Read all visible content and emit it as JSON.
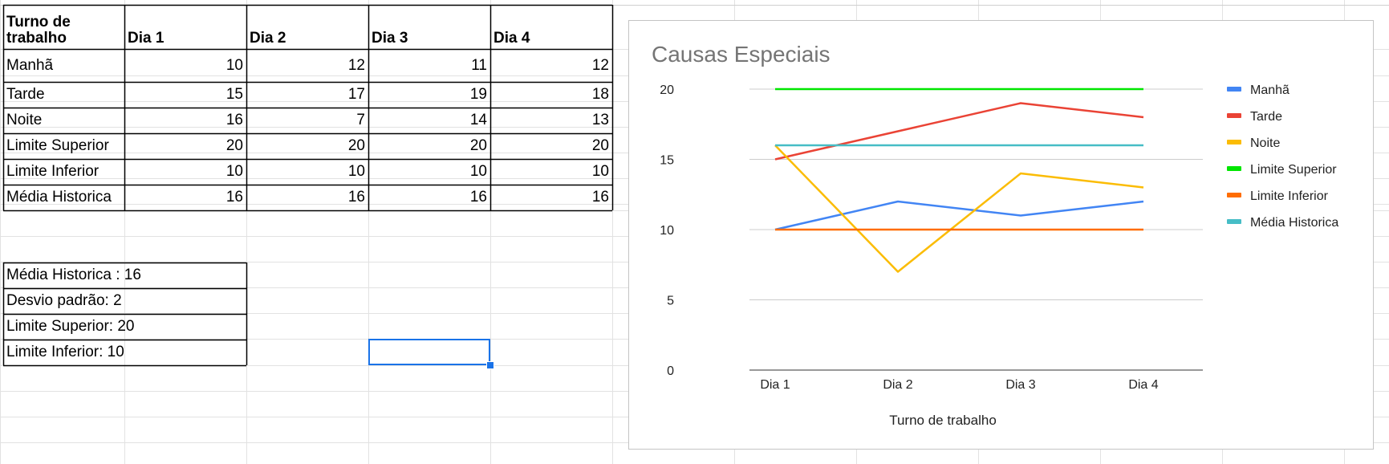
{
  "sheet": {
    "header": [
      "Turno de trabalho",
      "Dia 1",
      "Dia 2",
      "Dia 3",
      "Dia 4"
    ],
    "rows": [
      {
        "label": "Manhã",
        "values": [
          "10",
          "12",
          "11",
          "12"
        ]
      },
      {
        "label": "Tarde",
        "values": [
          "15",
          "17",
          "19",
          "18"
        ]
      },
      {
        "label": "Noite",
        "values": [
          "16",
          "7",
          "14",
          "13"
        ]
      },
      {
        "label": "Limite Superior",
        "values": [
          "20",
          "20",
          "20",
          "20"
        ]
      },
      {
        "label": "Limite Inferior",
        "values": [
          "10",
          "10",
          "10",
          "10"
        ]
      },
      {
        "label": "Média Historica",
        "values": [
          "16",
          "16",
          "16",
          "16"
        ]
      }
    ],
    "stats": [
      "Média Historica : 16",
      "Desvio padrão: 2",
      "Limite Superior: 20",
      "Limite Inferior: 10"
    ]
  },
  "chart_data": {
    "type": "line",
    "title": "Causas Especiais",
    "xlabel": "Turno de trabalho",
    "ylabel": "",
    "categories": [
      "Dia 1",
      "Dia 2",
      "Dia 3",
      "Dia 4"
    ],
    "ylim": [
      0,
      20
    ],
    "yticks": [
      0,
      5,
      10,
      15,
      20
    ],
    "grid": true,
    "legend_position": "right",
    "series": [
      {
        "name": "Manhã",
        "values": [
          10,
          12,
          11,
          12
        ],
        "color": "#4285f4"
      },
      {
        "name": "Tarde",
        "values": [
          15,
          17,
          19,
          18
        ],
        "color": "#ea4335"
      },
      {
        "name": "Noite",
        "values": [
          16,
          7,
          14,
          13
        ],
        "color": "#fbbc04"
      },
      {
        "name": "Limite Superior",
        "values": [
          20,
          20,
          20,
          20
        ],
        "color": "#00e600"
      },
      {
        "name": "Limite Inferior",
        "values": [
          10,
          10,
          10,
          10
        ],
        "color": "#ff6d01"
      },
      {
        "name": "Média Historica",
        "values": [
          16,
          16,
          16,
          16
        ],
        "color": "#46bdc6"
      }
    ]
  }
}
